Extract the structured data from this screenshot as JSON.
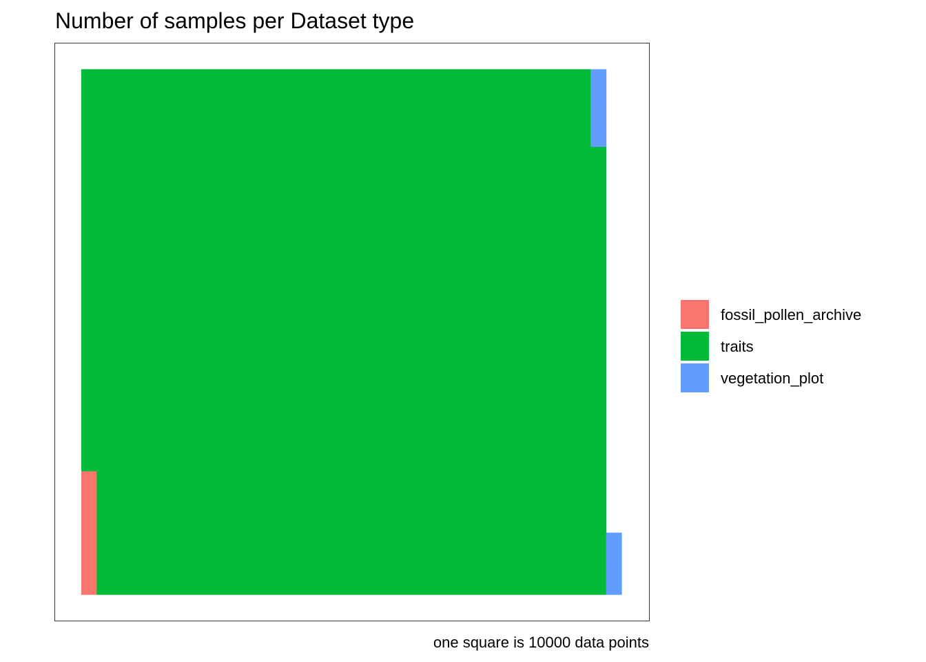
{
  "chart_data": {
    "type": "waffle",
    "title": "Number of samples per Dataset type",
    "caption": "one square is 10000 data points",
    "xlabel": "",
    "ylabel": "",
    "grid": false,
    "legend_position": "right",
    "unit": 10000,
    "grid_rows": 34,
    "categories": [
      "fossil_pollen_archive",
      "traits",
      "vegetation_plot"
    ],
    "values": [
      8,
      1143,
      9
    ],
    "colors": [
      "#F8766D",
      "#00BA38",
      "#619CFF"
    ]
  }
}
